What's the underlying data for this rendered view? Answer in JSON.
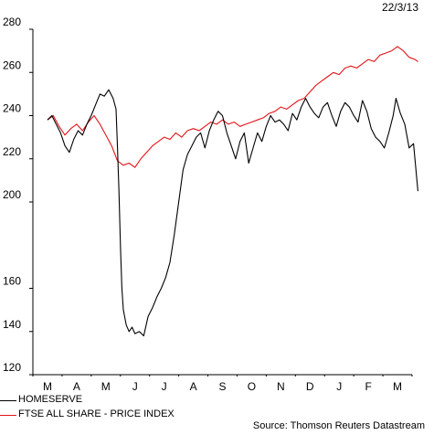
{
  "chart_data": {
    "type": "line",
    "date_label": "22/3/13",
    "ylim": [
      120,
      280
    ],
    "yticks": [
      120,
      140,
      160,
      200,
      220,
      240,
      260,
      280
    ],
    "x_months": [
      "M",
      "A",
      "M",
      "J",
      "J",
      "A",
      "S",
      "O",
      "N",
      "D",
      "J",
      "F",
      "M"
    ],
    "legend_position": "bottom-left",
    "grid": false,
    "source": "Source: Thomson Reuters Datastream",
    "series": [
      {
        "name": "HOMESERVE",
        "color": "#000000",
        "values": [
          [
            0,
            238
          ],
          [
            0.15,
            240
          ],
          [
            0.3,
            236
          ],
          [
            0.45,
            232
          ],
          [
            0.6,
            226
          ],
          [
            0.75,
            223
          ],
          [
            0.9,
            229
          ],
          [
            1.05,
            233
          ],
          [
            1.2,
            231
          ],
          [
            1.35,
            236
          ],
          [
            1.5,
            240
          ],
          [
            1.65,
            245
          ],
          [
            1.8,
            250
          ],
          [
            1.95,
            249
          ],
          [
            2.1,
            252
          ],
          [
            2.25,
            248
          ],
          [
            2.35,
            243
          ],
          [
            2.4,
            225
          ],
          [
            2.45,
            205
          ],
          [
            2.5,
            180
          ],
          [
            2.55,
            160
          ],
          [
            2.6,
            150
          ],
          [
            2.7,
            143
          ],
          [
            2.8,
            140
          ],
          [
            2.9,
            142
          ],
          [
            3.0,
            139
          ],
          [
            3.15,
            140
          ],
          [
            3.3,
            138
          ],
          [
            3.45,
            147
          ],
          [
            3.6,
            151
          ],
          [
            3.75,
            156
          ],
          [
            3.9,
            160
          ],
          [
            4.05,
            165
          ],
          [
            4.2,
            172
          ],
          [
            4.35,
            185
          ],
          [
            4.5,
            200
          ],
          [
            4.65,
            215
          ],
          [
            4.8,
            222
          ],
          [
            4.95,
            226
          ],
          [
            5.1,
            230
          ],
          [
            5.25,
            232
          ],
          [
            5.4,
            225
          ],
          [
            5.55,
            233
          ],
          [
            5.7,
            238
          ],
          [
            5.85,
            242
          ],
          [
            6.0,
            240
          ],
          [
            6.15,
            232
          ],
          [
            6.3,
            226
          ],
          [
            6.45,
            220
          ],
          [
            6.6,
            228
          ],
          [
            6.75,
            232
          ],
          [
            6.9,
            218
          ],
          [
            7.05,
            225
          ],
          [
            7.2,
            232
          ],
          [
            7.35,
            228
          ],
          [
            7.5,
            235
          ],
          [
            7.65,
            240
          ],
          [
            7.8,
            237
          ],
          [
            7.95,
            238
          ],
          [
            8.1,
            236
          ],
          [
            8.25,
            233
          ],
          [
            8.4,
            241
          ],
          [
            8.55,
            238
          ],
          [
            8.7,
            244
          ],
          [
            8.85,
            248
          ],
          [
            9.0,
            244
          ],
          [
            9.15,
            241
          ],
          [
            9.3,
            239
          ],
          [
            9.45,
            244
          ],
          [
            9.6,
            246
          ],
          [
            9.75,
            240
          ],
          [
            9.9,
            235
          ],
          [
            10.05,
            242
          ],
          [
            10.2,
            246
          ],
          [
            10.35,
            244
          ],
          [
            10.5,
            240
          ],
          [
            10.65,
            237
          ],
          [
            10.8,
            247
          ],
          [
            10.95,
            242
          ],
          [
            11.1,
            234
          ],
          [
            11.25,
            230
          ],
          [
            11.4,
            228
          ],
          [
            11.55,
            225
          ],
          [
            11.7,
            232
          ],
          [
            11.85,
            240
          ],
          [
            11.95,
            248
          ],
          [
            12.1,
            241
          ],
          [
            12.25,
            236
          ],
          [
            12.4,
            225
          ],
          [
            12.55,
            227
          ],
          [
            12.7,
            205
          ]
        ]
      },
      {
        "name": "FTSE ALL SHARE - PRICE INDEX",
        "color": "#e3141a",
        "values": [
          [
            0,
            238
          ],
          [
            0.2,
            240
          ],
          [
            0.4,
            235
          ],
          [
            0.6,
            231
          ],
          [
            0.8,
            234
          ],
          [
            1.0,
            236
          ],
          [
            1.2,
            233
          ],
          [
            1.4,
            237
          ],
          [
            1.6,
            240
          ],
          [
            1.8,
            236
          ],
          [
            2.0,
            231
          ],
          [
            2.2,
            226
          ],
          [
            2.4,
            219
          ],
          [
            2.6,
            217
          ],
          [
            2.8,
            218
          ],
          [
            3.0,
            216
          ],
          [
            3.2,
            220
          ],
          [
            3.4,
            223
          ],
          [
            3.6,
            226
          ],
          [
            3.8,
            228
          ],
          [
            4.0,
            230
          ],
          [
            4.2,
            229
          ],
          [
            4.4,
            232
          ],
          [
            4.6,
            230
          ],
          [
            4.8,
            233
          ],
          [
            5.0,
            234
          ],
          [
            5.2,
            233
          ],
          [
            5.4,
            235
          ],
          [
            5.6,
            237
          ],
          [
            5.8,
            236
          ],
          [
            6.0,
            238
          ],
          [
            6.2,
            236
          ],
          [
            6.4,
            237
          ],
          [
            6.6,
            235
          ],
          [
            6.8,
            236
          ],
          [
            7.0,
            237
          ],
          [
            7.2,
            238
          ],
          [
            7.4,
            239
          ],
          [
            7.6,
            241
          ],
          [
            7.8,
            242
          ],
          [
            8.0,
            244
          ],
          [
            8.2,
            243
          ],
          [
            8.4,
            245
          ],
          [
            8.6,
            247
          ],
          [
            8.8,
            248
          ],
          [
            9.0,
            251
          ],
          [
            9.2,
            254
          ],
          [
            9.4,
            256
          ],
          [
            9.6,
            258
          ],
          [
            9.8,
            260
          ],
          [
            10.0,
            259
          ],
          [
            10.2,
            262
          ],
          [
            10.4,
            263
          ],
          [
            10.6,
            262
          ],
          [
            10.8,
            264
          ],
          [
            11.0,
            266
          ],
          [
            11.2,
            265
          ],
          [
            11.4,
            268
          ],
          [
            11.6,
            269
          ],
          [
            11.8,
            270
          ],
          [
            12.0,
            272
          ],
          [
            12.2,
            270
          ],
          [
            12.4,
            267
          ],
          [
            12.6,
            266
          ],
          [
            12.7,
            265
          ]
        ]
      }
    ]
  }
}
